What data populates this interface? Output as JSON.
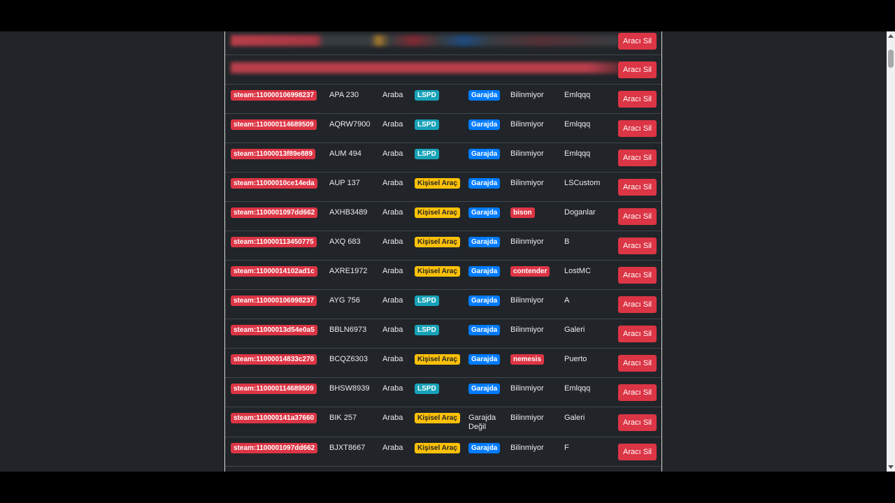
{
  "table": {
    "delete_label": "Aracı Sil",
    "rows": [
      {
        "steam": "steam:110000106998237",
        "plate": "APA 230",
        "type": "Araba",
        "job": "LSPD",
        "job_color": "teal",
        "status": "Garajda",
        "status_badge": true,
        "model": "Bilinmiyor",
        "model_badge": false,
        "owner": "Emlqqq"
      },
      {
        "steam": "steam:110000114689509",
        "plate": "AQRW7900",
        "type": "Araba",
        "job": "LSPD",
        "job_color": "teal",
        "status": "Garajda",
        "status_badge": true,
        "model": "Bilinmiyor",
        "model_badge": false,
        "owner": "Emlqqq"
      },
      {
        "steam": "steam:11000013f89e889",
        "plate": "AUM 494",
        "type": "Araba",
        "job": "LSPD",
        "job_color": "teal",
        "status": "Garajda",
        "status_badge": true,
        "model": "Bilinmiyor",
        "model_badge": false,
        "owner": "Emlqqq"
      },
      {
        "steam": "steam:11000010ce14eda",
        "plate": "AUP 137",
        "type": "Araba",
        "job": "Kişisel Araç",
        "job_color": "yellow",
        "status": "Garajda",
        "status_badge": true,
        "model": "Bilinmiyor",
        "model_badge": false,
        "owner": "LSCustom"
      },
      {
        "steam": "steam:1100001097dd662",
        "plate": "AXHB3489",
        "type": "Araba",
        "job": "Kişisel Araç",
        "job_color": "yellow",
        "status": "Garajda",
        "status_badge": true,
        "model": "bison",
        "model_badge": true,
        "owner": "Doganlar"
      },
      {
        "steam": "steam:110000113450775",
        "plate": "AXQ 683",
        "type": "Araba",
        "job": "Kişisel Araç",
        "job_color": "yellow",
        "status": "Garajda",
        "status_badge": true,
        "model": "Bilinmiyor",
        "model_badge": false,
        "owner": "B"
      },
      {
        "steam": "steam:11000014102ad1c",
        "plate": "AXRE1972",
        "type": "Araba",
        "job": "Kişisel Araç",
        "job_color": "yellow",
        "status": "Garajda",
        "status_badge": true,
        "model": "contender",
        "model_badge": true,
        "owner": "LostMC"
      },
      {
        "steam": "steam:110000106998237",
        "plate": "AYG 756",
        "type": "Araba",
        "job": "LSPD",
        "job_color": "teal",
        "status": "Garajda",
        "status_badge": true,
        "model": "Bilinmiyor",
        "model_badge": false,
        "owner": "A"
      },
      {
        "steam": "steam:11000013d54e0a5",
        "plate": "BBLN6973",
        "type": "Araba",
        "job": "LSPD",
        "job_color": "teal",
        "status": "Garajda",
        "status_badge": true,
        "model": "Bilinmiyor",
        "model_badge": false,
        "owner": "Galeri"
      },
      {
        "steam": "steam:11000014833c270",
        "plate": "BCQZ6303",
        "type": "Araba",
        "job": "Kişisel Araç",
        "job_color": "yellow",
        "status": "Garajda",
        "status_badge": true,
        "model": "nemesis",
        "model_badge": true,
        "owner": "Puerto"
      },
      {
        "steam": "steam:110000114689509",
        "plate": "BHSW8939",
        "type": "Araba",
        "job": "LSPD",
        "job_color": "teal",
        "status": "Garajda",
        "status_badge": true,
        "model": "Bilinmiyor",
        "model_badge": false,
        "owner": "Emlqqq"
      },
      {
        "steam": "steam:110000141a37660",
        "plate": "BIK 257",
        "type": "Araba",
        "job": "Kişisel Araç",
        "job_color": "yellow",
        "status": "Garajda Değil",
        "status_badge": false,
        "model": "Bilinmiyor",
        "model_badge": false,
        "owner": "Galeri"
      },
      {
        "steam": "steam:1100001097dd662",
        "plate": "BJXT8667",
        "type": "Araba",
        "job": "Kişisel Araç",
        "job_color": "yellow",
        "status": "Garajda",
        "status_badge": true,
        "model": "Bilinmiyor",
        "model_badge": false,
        "owner": "F"
      }
    ]
  }
}
